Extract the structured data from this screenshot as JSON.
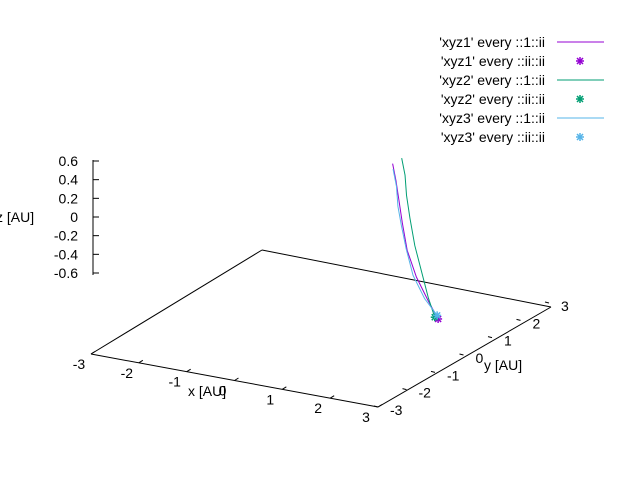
{
  "chart_data": {
    "type": "line",
    "projection": "3d",
    "title": "",
    "xlabel": "x [AU]",
    "ylabel": "y [AU]",
    "zlabel": "z [AU]",
    "xlim": [
      -3,
      3
    ],
    "ylim": [
      -3,
      3
    ],
    "zlim": [
      -0.8,
      0.7
    ],
    "x_ticks": [
      "-3",
      "-2",
      "-1",
      "0",
      "1",
      "2",
      "3"
    ],
    "y_ticks": [
      "-3",
      "-2",
      "-1",
      "0",
      "1",
      "2",
      "3"
    ],
    "z_ticks": [
      "-0.6",
      "-0.4",
      "-0.2",
      "0",
      "0.2",
      "0.4",
      "0.6"
    ],
    "z_tick_values": [
      -0.6,
      -0.4,
      -0.2,
      0,
      0.2,
      0.4,
      0.6
    ],
    "grid": false,
    "legend_position": "top-right",
    "series": [
      {
        "name": "'xyz1' every ::1::ii",
        "kind": "line",
        "color": "#9400d3",
        "x": [
          -0.15,
          -0.05,
          0.1,
          0.35,
          0.75,
          1.3,
          1.9,
          2.35
        ],
        "y": [
          2.8,
          2.75,
          2.6,
          2.3,
          1.8,
          1.2,
          0.6,
          0.2
        ],
        "z": [
          0.7,
          0.5,
          0.3,
          0.1,
          -0.1,
          -0.25,
          -0.35,
          -0.45
        ]
      },
      {
        "name": "'xyz1' every ::ii::ii",
        "kind": "points",
        "color": "#9400d3",
        "x": [
          2.35
        ],
        "y": [
          0.2
        ],
        "z": [
          -0.45
        ]
      },
      {
        "name": "'xyz2' every ::1::ii",
        "kind": "line",
        "color": "#009e73",
        "x": [
          -0.05,
          0.05,
          0.2,
          0.45,
          0.85,
          1.35,
          1.85,
          2.25
        ],
        "y": [
          2.95,
          2.9,
          2.7,
          2.4,
          1.9,
          1.3,
          0.7,
          0.25
        ],
        "z": [
          0.75,
          0.55,
          0.35,
          0.15,
          -0.05,
          -0.2,
          -0.35,
          -0.45
        ]
      },
      {
        "name": "'xyz2' every ::ii::ii",
        "kind": "points",
        "color": "#009e73",
        "x": [
          2.25
        ],
        "y": [
          0.25
        ],
        "z": [
          -0.45
        ]
      },
      {
        "name": "'xyz3' every ::1::ii",
        "kind": "line",
        "color": "#56b4e9",
        "x": [
          -0.2,
          -0.1,
          0.05,
          0.3,
          0.7,
          1.2,
          1.8,
          2.3
        ],
        "y": [
          2.9,
          2.85,
          2.65,
          2.35,
          1.85,
          1.25,
          0.65,
          0.25
        ],
        "z": [
          0.6,
          0.4,
          0.2,
          0.05,
          -0.1,
          -0.25,
          -0.35,
          -0.42
        ]
      },
      {
        "name": "'xyz3' every ::ii::ii",
        "kind": "points",
        "color": "#56b4e9",
        "x": [
          2.3
        ],
        "y": [
          0.25
        ],
        "z": [
          -0.42
        ]
      }
    ]
  }
}
